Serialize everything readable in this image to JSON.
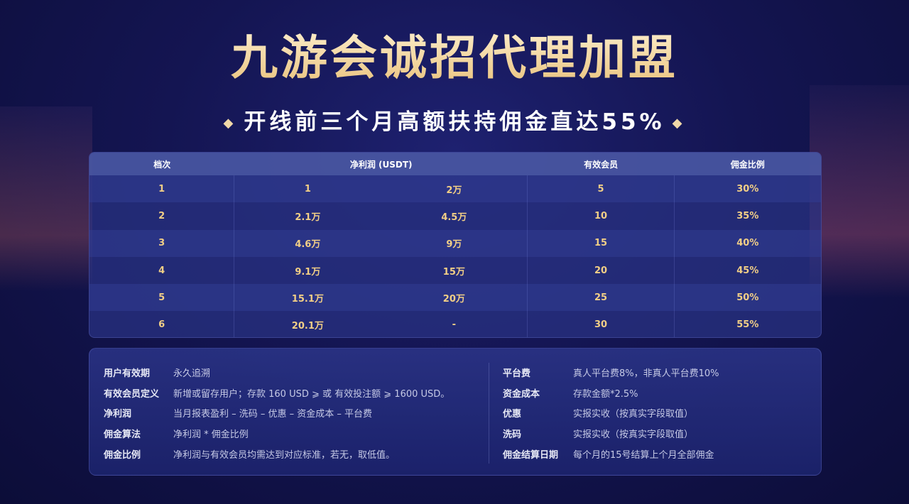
{
  "title": "九游会诚招代理加盟",
  "subtitle": "开线前三个月高额扶持佣金直达55%",
  "table": {
    "headers": [
      "档次",
      "净利润 (USDT)",
      "有效会员",
      "佣金比例"
    ],
    "rows": [
      [
        "1",
        "1",
        "2万",
        "5",
        "30%"
      ],
      [
        "2",
        "2.1万",
        "4.5万",
        "10",
        "35%"
      ],
      [
        "3",
        "4.6万",
        "9万",
        "15",
        "40%"
      ],
      [
        "4",
        "9.1万",
        "15万",
        "20",
        "45%"
      ],
      [
        "5",
        "15.1万",
        "20万",
        "25",
        "50%"
      ],
      [
        "6",
        "20.1万",
        "-",
        "30",
        "55%"
      ]
    ]
  },
  "info": {
    "left": [
      {
        "k": "用户有效期",
        "v": "永久追溯"
      },
      {
        "k": "有效会员定义",
        "v": "新增或留存用户；存款 160 USD ⩾ 或 有效投注额 ⩾ 1600 USD。"
      },
      {
        "k": "净利润",
        "v": "当月报表盈利 – 洗码 – 优惠 – 资金成本 – 平台费"
      },
      {
        "k": "佣金算法",
        "v": "净利润 * 佣金比例"
      },
      {
        "k": "佣金比例",
        "v": "净利润与有效会员均需达到对应标准，若无，取低值。"
      }
    ],
    "right": [
      {
        "k": "平台费",
        "v": "真人平台费8%，非真人平台费10%"
      },
      {
        "k": "资金成本",
        "v": "存款金额*2.5%"
      },
      {
        "k": "优惠",
        "v": "实报实收（按真实字段取值）"
      },
      {
        "k": "洗码",
        "v": "实报实收（按真实字段取值）"
      },
      {
        "k": "佣金结算日期",
        "v": "每个月的15号结算上个月全部佣金"
      }
    ]
  },
  "colors": {
    "gold": "#f2cf86",
    "background": "#141552"
  }
}
